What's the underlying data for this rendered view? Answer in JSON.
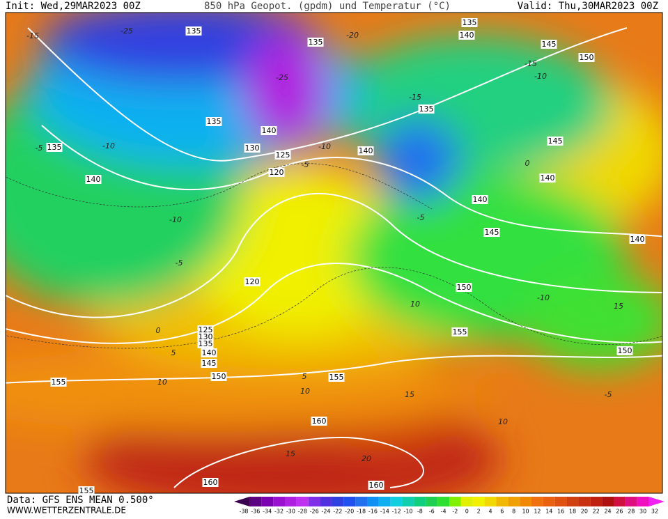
{
  "header": {
    "init": "Init: Wed,29MAR2023 00Z",
    "title": "850 hPa Geopot. (gpdm) und Temperatur (°C)",
    "valid": "Valid: Thu,30MAR2023 00Z"
  },
  "footer": {
    "source": "Data: GFS ENS MEAN 0.500°",
    "site": "WWW.WETTERZENTRALE.DE"
  },
  "colorbar": {
    "ticks": [
      -38,
      -36,
      -34,
      -32,
      -30,
      -28,
      -26,
      -24,
      -22,
      -20,
      -18,
      -16,
      -14,
      -12,
      -10,
      -8,
      -6,
      -4,
      -2,
      0,
      2,
      4,
      6,
      8,
      10,
      12,
      14,
      16,
      18,
      20,
      22,
      24,
      26,
      28,
      30,
      32
    ],
    "colors": [
      "#3a0050",
      "#5a0080",
      "#7a00b0",
      "#9a10d0",
      "#b020e0",
      "#c030f0",
      "#8030e8",
      "#5030e0",
      "#3040e0",
      "#2050f0",
      "#2070f0",
      "#1090f0",
      "#10b0f0",
      "#10d0e0",
      "#10d0b0",
      "#10d080",
      "#20d050",
      "#30e030",
      "#80f000",
      "#e0f000",
      "#f0f000",
      "#f0d800",
      "#f0b800",
      "#f0a000",
      "#f08800",
      "#f07010",
      "#e86010",
      "#e05010",
      "#d04010",
      "#c83010",
      "#c02010",
      "#b01010",
      "#d01040",
      "#e01080",
      "#f010c0",
      "#f020f0"
    ]
  },
  "map": {
    "geopotential_labels": [
      135,
      135,
      135,
      140,
      145,
      150,
      135,
      135,
      140,
      140,
      130,
      125,
      120,
      140,
      135,
      145,
      140,
      140,
      145,
      140,
      150,
      155,
      150,
      120,
      125,
      130,
      135,
      140,
      145,
      150,
      155,
      155,
      160,
      160,
      160,
      155
    ],
    "temperature_labels": [
      -25,
      -20,
      -25,
      -15,
      -15,
      -10,
      -15,
      -10,
      -5,
      -10,
      -5,
      -10,
      -5,
      0,
      5,
      10,
      10,
      5,
      15,
      10,
      15,
      20,
      15,
      -5,
      0,
      10,
      -10,
      -5
    ]
  }
}
